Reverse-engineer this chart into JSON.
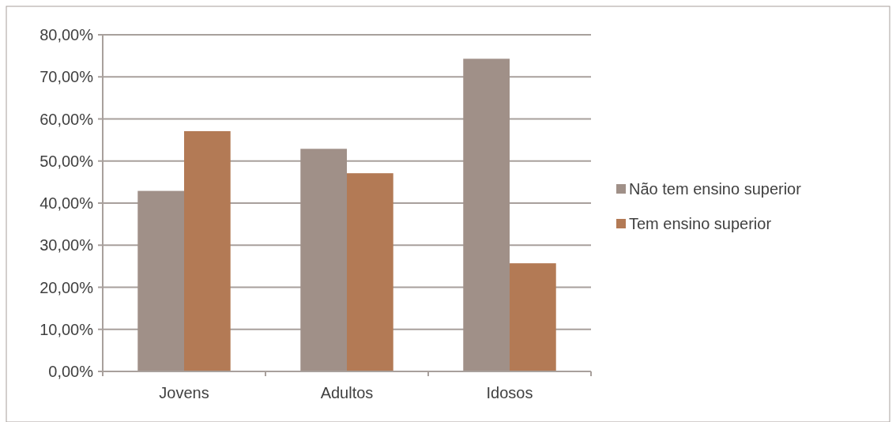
{
  "chart_data": {
    "type": "bar",
    "categories": [
      "Jovens",
      "Adultos",
      "Idosos"
    ],
    "series": [
      {
        "name": "Não tem ensino superior",
        "color": "#a09088",
        "values": [
          42.9,
          52.9,
          74.3
        ]
      },
      {
        "name": "Tem ensino superior",
        "color": "#b37a55",
        "values": [
          57.1,
          47.1,
          25.7
        ]
      }
    ],
    "ylim": [
      0,
      80
    ],
    "yticks": [
      {
        "value": 0,
        "label": "0,00%"
      },
      {
        "value": 10,
        "label": "10,00%"
      },
      {
        "value": 20,
        "label": "20,00%"
      },
      {
        "value": 30,
        "label": "30,00%"
      },
      {
        "value": 40,
        "label": "40,00%"
      },
      {
        "value": 50,
        "label": "50,00%"
      },
      {
        "value": 60,
        "label": "60,00%"
      },
      {
        "value": 70,
        "label": "70,00%"
      },
      {
        "value": 80,
        "label": "80,00%"
      }
    ],
    "grid": "y",
    "legend": "right"
  }
}
